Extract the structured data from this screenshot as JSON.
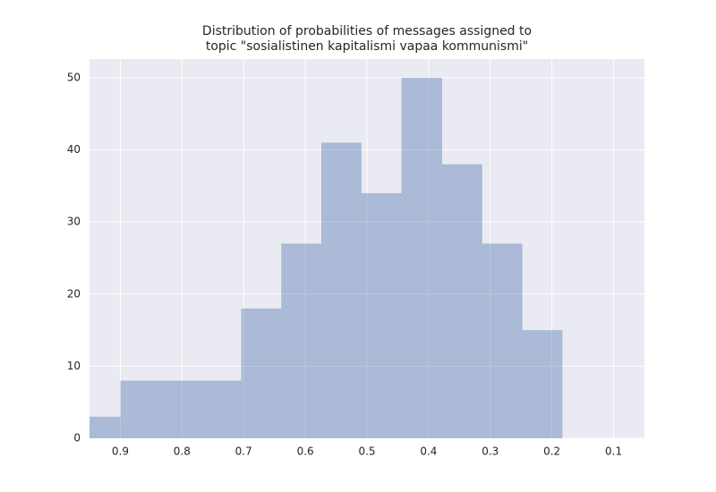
{
  "chart_data": {
    "type": "histogram",
    "title": [
      "Distribution of probabilities of messages assigned to",
      "topic \"sosialistinen kapitalismi vapaa kommunismi\""
    ],
    "bins": [
      0.183,
      0.248,
      0.313,
      0.378,
      0.444,
      0.509,
      0.574,
      0.639,
      0.704,
      0.77,
      0.835,
      0.9,
      0.965
    ],
    "values": [
      15,
      27,
      38,
      50,
      34,
      41,
      27,
      18,
      8,
      8,
      8,
      3
    ],
    "color": "#4c72b0",
    "xlim": [
      0.95,
      0.05
    ],
    "xticks": [
      0.9,
      0.8,
      0.7,
      0.6,
      0.5,
      0.4,
      0.3,
      0.2,
      0.1
    ],
    "ylim": [
      0,
      52.6
    ],
    "yticks": [
      0,
      10,
      20,
      30,
      40,
      50
    ],
    "grid": true
  }
}
